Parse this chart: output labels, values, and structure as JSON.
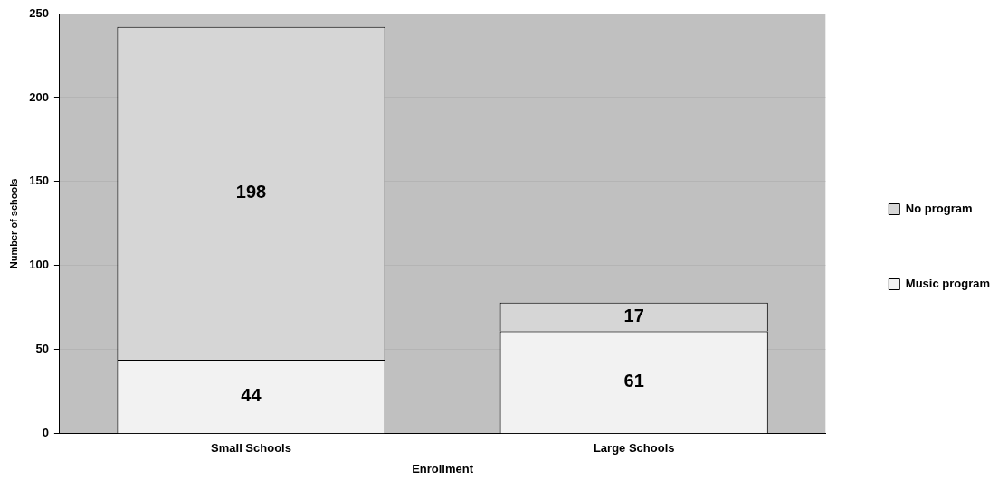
{
  "chart_data": {
    "type": "bar",
    "xlabel": "Enrollment",
    "ylabel": "Number of schools",
    "categories": [
      "Small Schools",
      "Large Schools"
    ],
    "series": [
      {
        "name": "Music program",
        "color": "#f2f2f2",
        "values": [
          44,
          61
        ]
      },
      {
        "name": "No program",
        "color": "#d6d6d6",
        "values": [
          198,
          17
        ]
      }
    ],
    "stacked": true,
    "ylim": [
      0,
      250
    ],
    "yticks": [
      0,
      50,
      100,
      150,
      200,
      250
    ],
    "grid": "y",
    "legend": "right",
    "data_labels": true
  }
}
